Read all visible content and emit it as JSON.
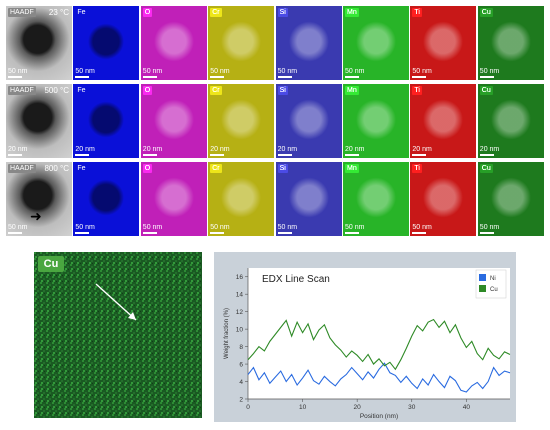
{
  "rows": [
    {
      "temperature": "23 °C",
      "scale": "50 nm"
    },
    {
      "temperature": "500 °C",
      "scale": "20 nm"
    },
    {
      "temperature": "800 °C",
      "scale": "50 nm"
    }
  ],
  "columns": [
    {
      "label": "HAADF",
      "color": "#6b6b6b"
    },
    {
      "label": "Fe",
      "color": "#0a10d8"
    },
    {
      "label": "O",
      "color": "#c020b8"
    },
    {
      "label": "Cr",
      "color": "#b6b014"
    },
    {
      "label": "Si",
      "color": "#3a3ab0"
    },
    {
      "label": "Mn",
      "color": "#28b428"
    },
    {
      "label": "Ti",
      "color": "#c81818"
    },
    {
      "label": "Cu",
      "color": "#1e7a1e"
    }
  ],
  "cu_map": {
    "label": "Cu",
    "color": "#1f7a2a"
  },
  "chart_data": {
    "type": "line",
    "title": "EDX Line Scan",
    "xlabel": "Position (nm)",
    "ylabel": "Weight fraction (%)",
    "xlim": [
      0,
      48
    ],
    "ylim": [
      2,
      17
    ],
    "xticks": [
      0,
      10,
      20,
      30,
      40
    ],
    "yticks": [
      2,
      4,
      6,
      8,
      10,
      12,
      14,
      16
    ],
    "legend_position": "top-right",
    "series": [
      {
        "name": "Ni",
        "color": "#2a6be0",
        "x": [
          0,
          1,
          2,
          3,
          4,
          5,
          6,
          7,
          8,
          9,
          10,
          11,
          12,
          13,
          14,
          15,
          16,
          17,
          18,
          19,
          20,
          21,
          22,
          23,
          24,
          25,
          26,
          27,
          28,
          29,
          30,
          31,
          32,
          33,
          34,
          35,
          36,
          37,
          38,
          39,
          40,
          41,
          42,
          43,
          44,
          45,
          46,
          47,
          48
        ],
        "y": [
          4.8,
          5.6,
          4.2,
          5.0,
          3.8,
          4.5,
          5.2,
          4.0,
          4.8,
          3.6,
          4.4,
          5.3,
          4.1,
          3.7,
          4.6,
          4.0,
          3.5,
          4.3,
          4.8,
          5.6,
          4.9,
          4.2,
          5.1,
          4.4,
          5.4,
          6.1,
          5.0,
          4.7,
          3.9,
          4.6,
          3.8,
          3.2,
          4.3,
          3.6,
          4.8,
          4.0,
          3.3,
          4.6,
          4.1,
          3.0,
          2.8,
          3.5,
          3.9,
          3.2,
          4.0,
          5.6,
          4.7,
          5.2,
          5.0
        ]
      },
      {
        "name": "Cu",
        "color": "#2e8a26",
        "x": [
          0,
          1,
          2,
          3,
          4,
          5,
          6,
          7,
          8,
          9,
          10,
          11,
          12,
          13,
          14,
          15,
          16,
          17,
          18,
          19,
          20,
          21,
          22,
          23,
          24,
          25,
          26,
          27,
          28,
          29,
          30,
          31,
          32,
          33,
          34,
          35,
          36,
          37,
          38,
          39,
          40,
          41,
          42,
          43,
          44,
          45,
          46,
          47,
          48
        ],
        "y": [
          6.5,
          7.2,
          8.0,
          7.5,
          8.6,
          9.4,
          10.2,
          11.0,
          9.2,
          10.8,
          9.6,
          10.6,
          8.8,
          9.9,
          10.5,
          9.0,
          8.2,
          7.6,
          6.8,
          7.5,
          7.0,
          6.3,
          7.1,
          6.0,
          6.6,
          5.8,
          6.2,
          5.4,
          6.5,
          7.8,
          9.2,
          10.4,
          9.8,
          10.8,
          11.1,
          10.2,
          10.9,
          9.6,
          10.5,
          9.0,
          7.9,
          8.6,
          7.2,
          6.5,
          7.8,
          7.0,
          6.6,
          7.4,
          7.1
        ]
      }
    ]
  }
}
